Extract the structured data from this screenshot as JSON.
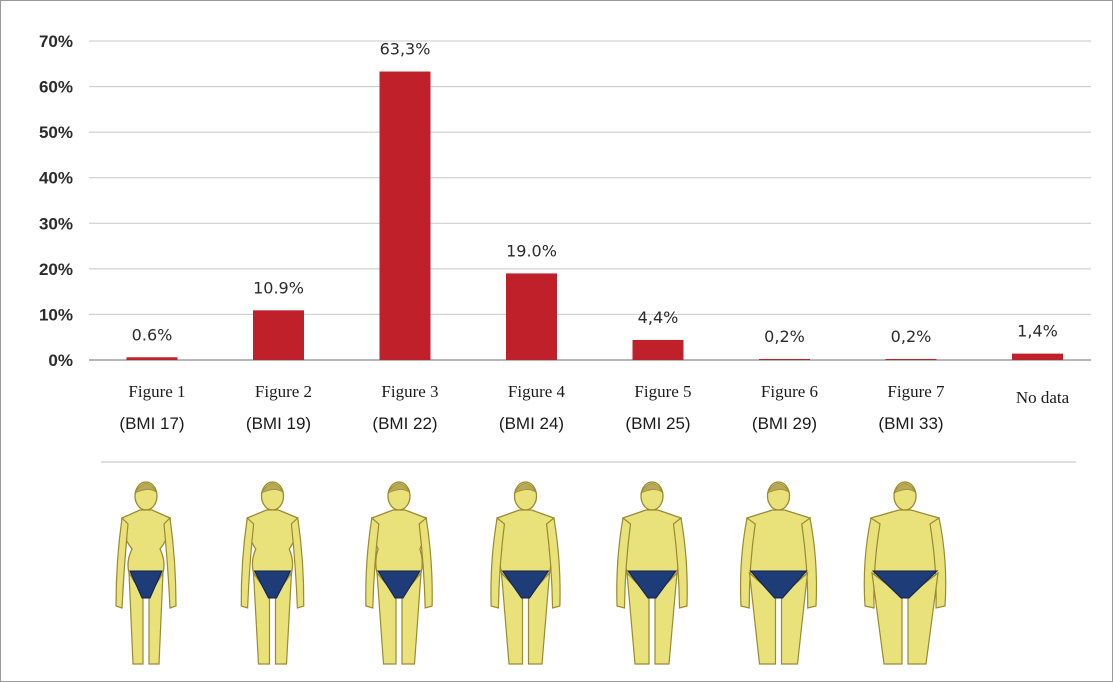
{
  "chart_data": {
    "type": "bar",
    "categories": [
      {
        "line1": "Figure  1",
        "line2": "(BMI 17)"
      },
      {
        "line1": "Figure  2",
        "line2": "(BMI 19)"
      },
      {
        "line1": "Figure 3",
        "line2": "(BMI 22)"
      },
      {
        "line1": "Figure  4",
        "line2": "(BMI 24)"
      },
      {
        "line1": "Figure 5",
        "line2": "(BMI 25)"
      },
      {
        "line1": "Figure  6",
        "line2": "(BMI 29)"
      },
      {
        "line1": "Figure  7",
        "line2": "(BMI 33)"
      },
      {
        "line1": "No data",
        "line2": ""
      }
    ],
    "values": [
      0.6,
      10.9,
      63.3,
      19.0,
      4.4,
      0.2,
      0.2,
      1.4
    ],
    "data_labels": [
      "0.6%",
      "10.9%",
      "63,3%",
      "19.0%",
      "4,4%",
      "0,2%",
      "0,2%",
      "1,4%"
    ],
    "ylim": [
      0,
      70
    ],
    "yticks": [
      0,
      10,
      20,
      30,
      40,
      50,
      60,
      70
    ],
    "ytick_labels": [
      "0%",
      "10%",
      "20%",
      "30%",
      "40%",
      "50%",
      "60%",
      "70%"
    ],
    "grid": true,
    "bar_color": "#c0202a",
    "title": "",
    "xlabel": "",
    "ylabel": ""
  },
  "figures": {
    "skin_color": "#e9e27a",
    "outline_color": "#9a8a30",
    "hair_color": "#b8a85a",
    "briefs_color": "#1e3c78",
    "bmi": [
      17,
      19,
      22,
      24,
      25,
      29,
      33
    ]
  }
}
